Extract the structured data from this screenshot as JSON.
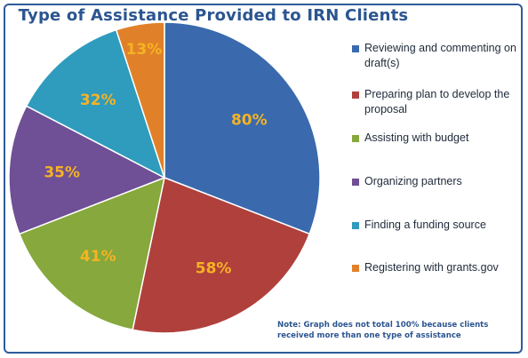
{
  "chart_data": {
    "type": "pie",
    "title": "Type of Assistance Provided to IRN Clients",
    "categories": [
      "Reviewing and commenting on draft(s)",
      "Preparing plan to develop the proposal",
      "Assisting with budget",
      "Organizing partners",
      "Finding a funding source",
      "Registering with grants.gov"
    ],
    "values": [
      80,
      58,
      41,
      35,
      32,
      13
    ],
    "value_labels": [
      "80%",
      "58%",
      "41%",
      "35%",
      "32%",
      "13%"
    ],
    "colors": [
      "#3a6aad",
      "#b0403c",
      "#86a83c",
      "#6f4f95",
      "#2f9bbd",
      "#e0812a"
    ],
    "label_color": "#f5b323",
    "legend_position": "right",
    "note": "Note: Graph does not total 100% because clients received more than one type of assistance"
  }
}
